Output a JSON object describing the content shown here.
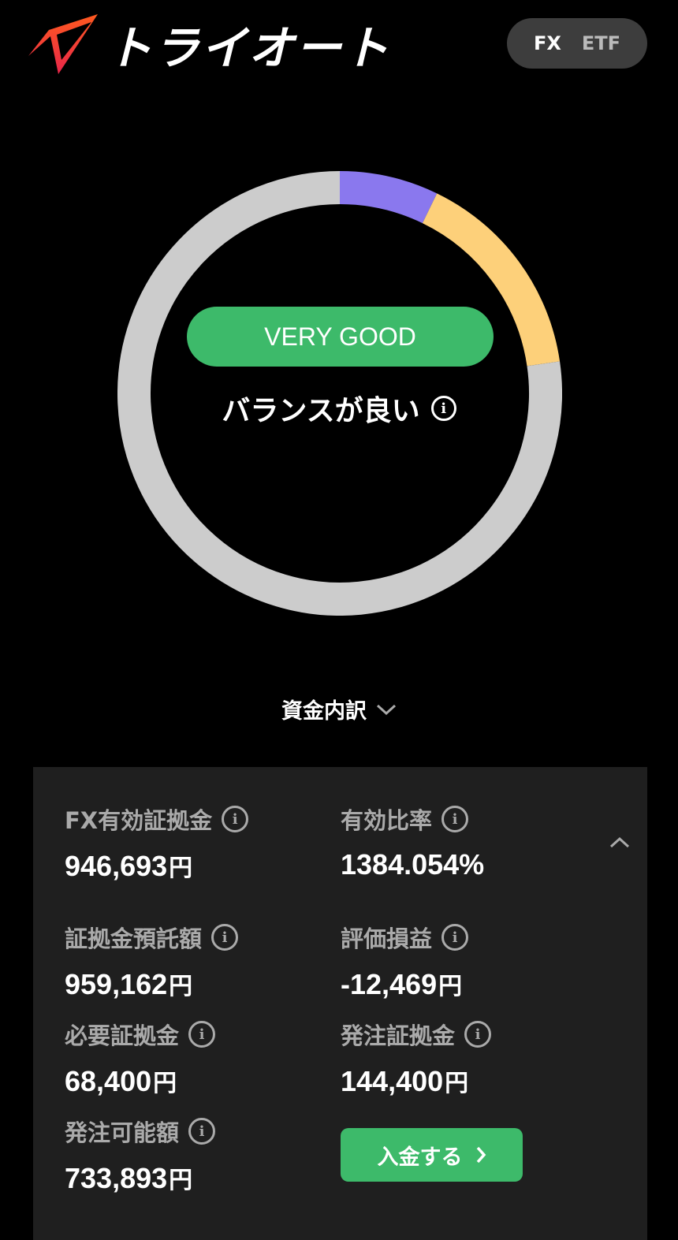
{
  "header": {
    "logo_text": "トライオート",
    "toggle": {
      "options": [
        "FX",
        "ETF"
      ],
      "selected": "FX"
    }
  },
  "gauge": {
    "rating": "VERY GOOD",
    "status": "バランスが良い",
    "segments": [
      {
        "color": "#8a78ee",
        "percent": 7.2
      },
      {
        "color": "#fdd07a",
        "percent": 15.5
      },
      {
        "color": "#cccccc",
        "percent": 77.3
      }
    ]
  },
  "breakdown": {
    "label": "資金内訳"
  },
  "card": {
    "items": [
      {
        "label": "FX有効証拠金",
        "value": "946,693",
        "unit": "円"
      },
      {
        "label": "有効比率",
        "value": "1384.054%",
        "unit": ""
      },
      {
        "label": "証拠金預託額",
        "value": "959,162",
        "unit": "円"
      },
      {
        "label": "評価損益",
        "value": "-12,469",
        "unit": "円"
      },
      {
        "label": "必要証拠金",
        "value": "68,400",
        "unit": "円"
      },
      {
        "label": "発注証拠金",
        "value": "144,400",
        "unit": "円"
      },
      {
        "label": "発注可能額",
        "value": "733,893",
        "unit": "円"
      }
    ],
    "deposit_button": "入金する"
  },
  "colors": {
    "accent": "#3dba6a",
    "card": "#1f1f1f"
  }
}
